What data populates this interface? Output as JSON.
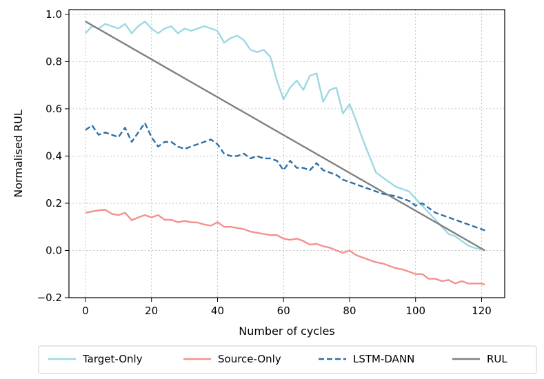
{
  "chart_data": {
    "type": "line",
    "title": "",
    "xlabel": "Number of cycles",
    "ylabel": "Normalised RUL",
    "xlim": [
      -5,
      127
    ],
    "ylim": [
      -0.2,
      1.02
    ],
    "xticks": [
      0,
      20,
      40,
      60,
      80,
      100,
      120
    ],
    "yticks": [
      -0.2,
      0.0,
      0.2,
      0.4,
      0.6,
      0.8,
      1.0
    ],
    "xtick_labels": [
      "0",
      "20",
      "40",
      "60",
      "80",
      "100",
      "120"
    ],
    "ytick_labels": [
      "−0.2",
      "0.0",
      "0.2",
      "0.4",
      "0.6",
      "0.8",
      "1.0"
    ],
    "grid": true,
    "legend_position": "bottom",
    "series": [
      {
        "name": "Target-Only",
        "color": "#9dd8e3",
        "style": "solid",
        "x": [
          0,
          2,
          4,
          6,
          8,
          10,
          12,
          14,
          16,
          18,
          20,
          22,
          24,
          26,
          28,
          30,
          32,
          34,
          36,
          38,
          40,
          42,
          44,
          46,
          48,
          50,
          52,
          54,
          56,
          58,
          60,
          62,
          64,
          66,
          68,
          70,
          72,
          74,
          76,
          78,
          80,
          82,
          84,
          86,
          88,
          90,
          92,
          94,
          96,
          98,
          100,
          102,
          104,
          106,
          108,
          110,
          112,
          114,
          116,
          118,
          120,
          121
        ],
        "values": [
          0.92,
          0.95,
          0.94,
          0.96,
          0.95,
          0.94,
          0.96,
          0.92,
          0.95,
          0.97,
          0.94,
          0.92,
          0.94,
          0.95,
          0.92,
          0.94,
          0.93,
          0.94,
          0.95,
          0.94,
          0.93,
          0.88,
          0.9,
          0.91,
          0.89,
          0.85,
          0.84,
          0.85,
          0.82,
          0.72,
          0.64,
          0.69,
          0.72,
          0.68,
          0.74,
          0.75,
          0.63,
          0.68,
          0.69,
          0.58,
          0.62,
          0.55,
          0.47,
          0.4,
          0.33,
          0.31,
          0.29,
          0.27,
          0.26,
          0.25,
          0.22,
          0.19,
          0.16,
          0.13,
          0.1,
          0.07,
          0.06,
          0.04,
          0.02,
          0.01,
          0.005,
          0.0
        ]
      },
      {
        "name": "Source-Only",
        "color": "#f4908d",
        "style": "solid",
        "x": [
          0,
          2,
          4,
          6,
          8,
          10,
          12,
          14,
          16,
          18,
          20,
          22,
          24,
          26,
          28,
          30,
          32,
          34,
          36,
          38,
          40,
          42,
          44,
          46,
          48,
          50,
          52,
          54,
          56,
          58,
          60,
          62,
          64,
          66,
          68,
          70,
          72,
          74,
          76,
          78,
          80,
          82,
          84,
          86,
          88,
          90,
          92,
          94,
          96,
          98,
          100,
          102,
          104,
          106,
          108,
          110,
          112,
          114,
          116,
          118,
          120,
          121
        ],
        "values": [
          0.16,
          0.165,
          0.17,
          0.172,
          0.155,
          0.15,
          0.16,
          0.128,
          0.14,
          0.15,
          0.14,
          0.15,
          0.13,
          0.13,
          0.12,
          0.125,
          0.12,
          0.118,
          0.11,
          0.105,
          0.12,
          0.1,
          0.1,
          0.095,
          0.09,
          0.08,
          0.075,
          0.07,
          0.065,
          0.065,
          0.05,
          0.045,
          0.05,
          0.04,
          0.025,
          0.028,
          0.018,
          0.012,
          0.0,
          -0.01,
          0.0,
          -0.02,
          -0.03,
          -0.04,
          -0.05,
          -0.055,
          -0.065,
          -0.075,
          -0.08,
          -0.09,
          -0.1,
          -0.1,
          -0.12,
          -0.12,
          -0.13,
          -0.125,
          -0.14,
          -0.13,
          -0.14,
          -0.14,
          -0.14,
          -0.145
        ]
      },
      {
        "name": "LSTM-DANN",
        "color": "#2a6fa9",
        "style": "dashed",
        "x": [
          0,
          2,
          4,
          6,
          8,
          10,
          12,
          14,
          16,
          18,
          20,
          22,
          24,
          26,
          28,
          30,
          32,
          34,
          36,
          38,
          40,
          42,
          44,
          46,
          48,
          50,
          52,
          54,
          56,
          58,
          60,
          62,
          64,
          66,
          68,
          70,
          72,
          74,
          76,
          78,
          80,
          82,
          84,
          86,
          88,
          90,
          92,
          94,
          96,
          98,
          100,
          102,
          104,
          106,
          108,
          110,
          112,
          114,
          116,
          118,
          120,
          121
        ],
        "values": [
          0.51,
          0.53,
          0.49,
          0.5,
          0.49,
          0.48,
          0.52,
          0.46,
          0.5,
          0.54,
          0.48,
          0.44,
          0.46,
          0.46,
          0.44,
          0.43,
          0.44,
          0.45,
          0.46,
          0.47,
          0.45,
          0.41,
          0.4,
          0.4,
          0.41,
          0.39,
          0.4,
          0.39,
          0.39,
          0.38,
          0.34,
          0.38,
          0.35,
          0.35,
          0.34,
          0.37,
          0.34,
          0.33,
          0.32,
          0.3,
          0.29,
          0.28,
          0.27,
          0.26,
          0.25,
          0.24,
          0.235,
          0.23,
          0.22,
          0.21,
          0.19,
          0.2,
          0.18,
          0.16,
          0.15,
          0.14,
          0.13,
          0.12,
          0.11,
          0.1,
          0.09,
          0.085
        ]
      },
      {
        "name": "RUL",
        "color": "#808080",
        "style": "solid",
        "x": [
          0,
          121
        ],
        "values": [
          0.97,
          0.0
        ]
      }
    ]
  }
}
